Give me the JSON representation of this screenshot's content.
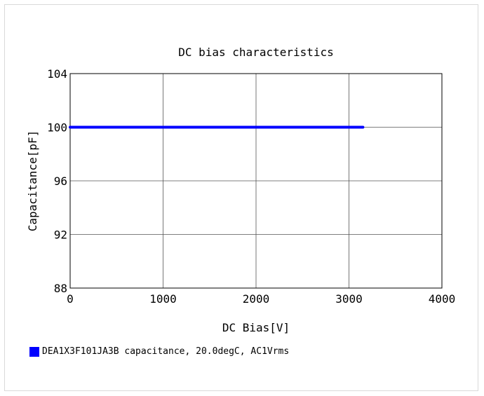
{
  "chart_data": {
    "type": "line",
    "title": "DC bias characteristics",
    "xlabel": "DC Bias[V]",
    "ylabel": "Capacitance[pF]",
    "xlim": [
      0,
      4000
    ],
    "ylim": [
      88,
      104
    ],
    "xticks": [
      "0",
      "1000",
      "2000",
      "3000",
      "4000"
    ],
    "yticks": [
      "88",
      "92",
      "96",
      "100",
      "104"
    ],
    "grid": true,
    "legend_position": "bottom-left",
    "series": [
      {
        "name": "DEA1X3F101JA3B capacitance, 20.0degC, AC1Vrms",
        "color": "#0000ff",
        "x": [
          0,
          500,
          1000,
          1500,
          2000,
          2500,
          3000,
          3150
        ],
        "y": [
          100,
          100,
          100,
          100,
          100,
          100,
          100,
          100
        ]
      }
    ]
  }
}
